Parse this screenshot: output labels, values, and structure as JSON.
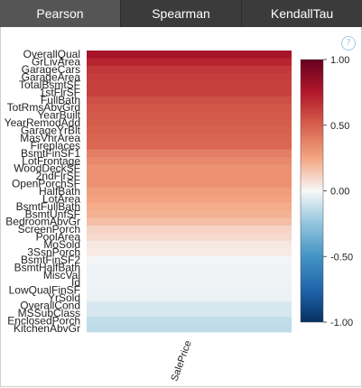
{
  "tabs": [
    {
      "label": "Pearson",
      "active": true
    },
    {
      "label": "Spearman",
      "active": false
    },
    {
      "label": "KendallTau",
      "active": false
    }
  ],
  "help_icon": {
    "glyph": "?",
    "icon": "question-circle-icon"
  },
  "colors": {
    "tab_bar": "#3b3b3b",
    "tab_active": "#555555",
    "scale_max": "#67001f",
    "scale_mid": "#f7f7f7",
    "scale_min": "#053061"
  },
  "chart_data": {
    "type": "heatmap",
    "x_categories": [
      "SalePrice"
    ],
    "y_categories": [
      "OverallQual",
      "GrLivArea",
      "GarageCars",
      "GarageArea",
      "TotalBsmtSF",
      "1stFlrSF",
      "FullBath",
      "TotRmsAbvGrd",
      "YearBuilt",
      "YearRemodAdd",
      "GarageYrBlt",
      "MasVnrArea",
      "Fireplaces",
      "BsmtFinSF1",
      "LotFrontage",
      "WoodDeckSF",
      "2ndFlrSF",
      "OpenPorchSF",
      "HalfBath",
      "LotArea",
      "BsmtFullBath",
      "BsmtUnfSF",
      "BedroomAbvGr",
      "ScreenPorch",
      "PoolArea",
      "MoSold",
      "3SsnPorch",
      "BsmtFinSF2",
      "BsmtHalfBath",
      "MiscVal",
      "Id",
      "LowQualFinSF",
      "YrSold",
      "OverallCond",
      "MSSubClass",
      "EnclosedPorch",
      "KitchenAbvGr"
    ],
    "values": [
      0.79,
      0.71,
      0.64,
      0.62,
      0.61,
      0.61,
      0.56,
      0.53,
      0.52,
      0.51,
      0.49,
      0.48,
      0.47,
      0.39,
      0.35,
      0.32,
      0.32,
      0.32,
      0.28,
      0.26,
      0.23,
      0.21,
      0.17,
      0.11,
      0.09,
      0.05,
      0.04,
      -0.01,
      -0.02,
      -0.02,
      -0.02,
      -0.03,
      -0.03,
      -0.08,
      -0.08,
      -0.13,
      -0.14
    ],
    "colorbar": {
      "range": [
        -1.0,
        1.0
      ],
      "ticks": [
        "1.00",
        "0.50",
        "0.00",
        "-0.50",
        "-1.00"
      ]
    }
  }
}
